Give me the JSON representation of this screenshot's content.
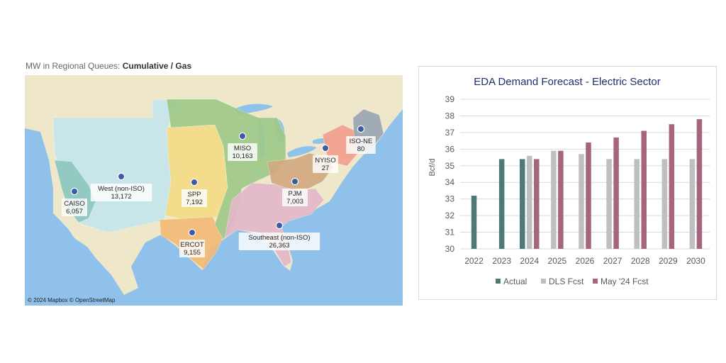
{
  "map": {
    "title_prefix": "MW in Regional Queues:",
    "title_filter": "Cumulative / Gas",
    "attribution": "© 2024 Mapbox  © OpenStreetMap",
    "colors": {
      "ocean": "#8fc1ea",
      "land": "#efe7c9",
      "west": "#c5e6ec",
      "caiso": "#8ec7bd",
      "spp": "#f4dc86",
      "ercot": "#f2bb78",
      "miso": "#9fc98a",
      "pjm": "#d2aa82",
      "southeast": "#e2b8c9",
      "nyiso": "#f3a08f",
      "isone": "#9aa6b2",
      "marker": "#3d5ba7"
    },
    "regions": [
      {
        "name": "CAISO",
        "value": "6,057"
      },
      {
        "name": "West (non-ISO)",
        "value": "13,172"
      },
      {
        "name": "SPP",
        "value": "7,192"
      },
      {
        "name": "ERCOT",
        "value": "9,155"
      },
      {
        "name": "MISO",
        "value": "10,163"
      },
      {
        "name": "PJM",
        "value": "7,003"
      },
      {
        "name": "Southeast (non-ISO)",
        "value": "26,363"
      },
      {
        "name": "NYISO",
        "value": "27"
      },
      {
        "name": "ISO-NE",
        "value": "80"
      }
    ]
  },
  "chart_data": {
    "type": "bar",
    "title": "EDA Demand Forecast - Electric Sector",
    "ylabel": "Bcf/d",
    "xlabel": "",
    "ylim": [
      30,
      39
    ],
    "yticks": [
      30,
      31,
      32,
      33,
      34,
      35,
      36,
      37,
      38,
      39
    ],
    "grid": true,
    "legend_position": "bottom",
    "categories": [
      "2022",
      "2023",
      "2024",
      "2025",
      "2026",
      "2027",
      "2028",
      "2029",
      "2030"
    ],
    "series": [
      {
        "name": "Actual",
        "color": "#4d7a78",
        "values": [
          33.2,
          35.4,
          35.4,
          null,
          null,
          null,
          null,
          null,
          null
        ]
      },
      {
        "name": "DLS Fcst",
        "color": "#bfbfbf",
        "values": [
          null,
          null,
          35.6,
          35.9,
          35.7,
          35.4,
          35.4,
          35.4,
          35.4
        ]
      },
      {
        "name": "May '24 Fcst",
        "color": "#a5657f",
        "values": [
          null,
          null,
          35.4,
          35.9,
          36.4,
          36.7,
          37.1,
          37.5,
          37.8
        ]
      }
    ]
  }
}
